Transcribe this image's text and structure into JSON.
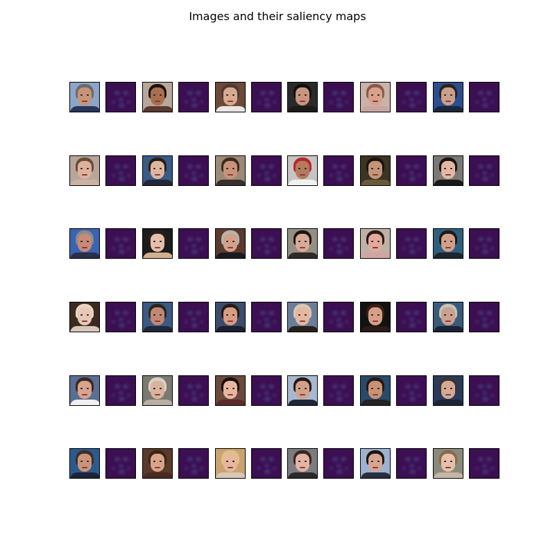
{
  "figure": {
    "title": "Images and their saliency maps"
  },
  "grid": {
    "rows": 6,
    "pairs_per_row": 6,
    "saliency_colormap": "viridis (low values, dark purple)",
    "face_palettes": [
      [
        {
          "bg": "#8aa6c8",
          "hair": "#6b6b6b",
          "skin": "#c89478",
          "shirt": "#2a3658"
        },
        {
          "bg": "#b9a89a",
          "hair": "#1c130f",
          "skin": "#a86f50",
          "shirt": "#5a3a30"
        },
        {
          "bg": "#6b4a3a",
          "hair": "#4d3b33",
          "skin": "#d9a891",
          "shirt": "#e9e6e4"
        },
        {
          "bg": "#2a2a2a",
          "hair": "#140e0c",
          "skin": "#c8957f",
          "shirt": "#1a1a1a"
        },
        {
          "bg": "#c9b2a8",
          "hair": "#8a5a48",
          "skin": "#d9a08c",
          "shirt": "#c7a5a0"
        },
        {
          "bg": "#2c4e8e",
          "hair": "#2a241f",
          "skin": "#caa08a",
          "shirt": "#1c2638"
        }
      ],
      [
        {
          "bg": "#b8a59a",
          "hair": "#6b4b36",
          "skin": "#dcb29c",
          "shirt": "#cbb2a2"
        },
        {
          "bg": "#3a5b86",
          "hair": "#2a1d18",
          "skin": "#ddb5a0",
          "shirt": "#22283a"
        },
        {
          "bg": "#9c8a78",
          "hair": "#3c2a1f",
          "skin": "#c99378",
          "shirt": "#3a2f2a"
        },
        {
          "bg": "#c7c4c4",
          "hair": "#b8262a",
          "skin": "#b47a5e",
          "shirt": "#f1f1f1"
        },
        {
          "bg": "#3a3424",
          "hair": "#1c130f",
          "skin": "#c39678",
          "shirt": "#6a5a3a"
        },
        {
          "bg": "#7a7874",
          "hair": "#1c130f",
          "skin": "#e2b7a6",
          "shirt": "#1a1a1a"
        }
      ],
      [
        {
          "bg": "#3b63b3",
          "hair": "#8a8a8a",
          "skin": "#c58a78",
          "shirt": "#2a3048"
        },
        {
          "bg": "#1c1c1c",
          "hair": "#2a1f18",
          "skin": "#e4bfa9",
          "shirt": "#d2b08e"
        },
        {
          "bg": "#5a3a2e",
          "hair": "#b6b3b0",
          "skin": "#d3a08a",
          "shirt": "#1a1a22"
        },
        {
          "bg": "#948f82",
          "hair": "#1c130f",
          "skin": "#d9aa96",
          "shirt": "#2f2a28"
        },
        {
          "bg": "#bfb0a8",
          "hair": "#2a1a16",
          "skin": "#e2aa9b",
          "shirt": "#d1a5a0"
        },
        {
          "bg": "#2f5f7e",
          "hair": "#1f1a18",
          "skin": "#d2a089",
          "shirt": "#1e2430"
        }
      ],
      [
        {
          "bg": "#3c2a22",
          "hair": "#e8d6c0",
          "skin": "#e7c7b7",
          "shirt": "#d9c7bc"
        },
        {
          "bg": "#3a5a82",
          "hair": "#2a2520",
          "skin": "#c08874",
          "shirt": "#20283a"
        },
        {
          "bg": "#3d4c6a",
          "hair": "#241c18",
          "skin": "#d79c82",
          "shirt": "#1b2030"
        },
        {
          "bg": "#6c7d9a",
          "hair": "#d8c8b0",
          "skin": "#e4b7a0",
          "shirt": "#26211e"
        },
        {
          "bg": "#121212",
          "hair": "#3a1f18",
          "skin": "#d6a086",
          "shirt": "#2a1a18"
        },
        {
          "bg": "#3a5a7a",
          "hair": "#c7c2b8",
          "skin": "#caa08e",
          "shirt": "#1a2236"
        }
      ],
      [
        {
          "bg": "#5a6f94",
          "hair": "#3a2a22",
          "skin": "#d8a48e",
          "shirt": "#f0f0f0"
        },
        {
          "bg": "#7a7a72",
          "hair": "#d8d2c4",
          "skin": "#d9b39e",
          "shirt": "#b8b0a4"
        },
        {
          "bg": "#6a4a3c",
          "hair": "#1a100c",
          "skin": "#e6b6a0",
          "shirt": "#5c2a2a"
        },
        {
          "bg": "#a8b8d0",
          "hair": "#241a16",
          "skin": "#d3a08a",
          "shirt": "#1e2638"
        },
        {
          "bg": "#2a4a6a",
          "hair": "#241a16",
          "skin": "#c89274",
          "shirt": "#232323"
        },
        {
          "bg": "#2a3a5a",
          "hair": "#3a3430",
          "skin": "#d2aa96",
          "shirt": "#1e2438"
        }
      ],
      [
        {
          "bg": "#2c5a8e",
          "hair": "#3a302a",
          "skin": "#cc947c",
          "shirt": "#1e2438"
        },
        {
          "bg": "#5a3a2a",
          "hair": "#3a2418",
          "skin": "#d8a488",
          "shirt": "#4a2a22"
        },
        {
          "bg": "#c9a46e",
          "hair": "#e0c08a",
          "skin": "#e6b79c",
          "shirt": "#d8c8b8"
        },
        {
          "bg": "#7c7c80",
          "hair": "#3a2620",
          "skin": "#e2b4a4",
          "shirt": "#2a2a2e"
        },
        {
          "bg": "#9cb2d0",
          "hair": "#1c1410",
          "skin": "#d5a691",
          "shirt": "#28303e"
        },
        {
          "bg": "#8a8a7c",
          "hair": "#8a6a4a",
          "skin": "#e6c0aa",
          "shirt": "#c7b6a6"
        }
      ]
    ]
  }
}
